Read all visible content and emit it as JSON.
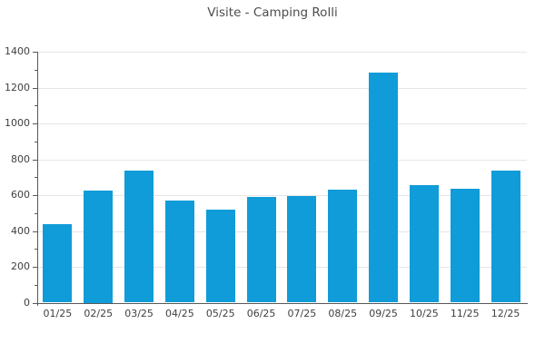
{
  "chart_data": {
    "type": "bar",
    "title": "Visite - Camping Rolli",
    "categories": [
      "01/25",
      "02/25",
      "03/25",
      "04/25",
      "05/25",
      "06/25",
      "07/25",
      "08/25",
      "09/25",
      "10/25",
      "11/25",
      "12/25"
    ],
    "values": [
      440,
      625,
      735,
      570,
      520,
      590,
      595,
      630,
      1285,
      655,
      635,
      735
    ],
    "xlabel": "",
    "ylabel": "",
    "ylim": [
      0,
      1400
    ],
    "ytick_interval": 200,
    "yminor_tick_interval": 100,
    "ytick_labels": [
      "0",
      "200",
      "400",
      "600",
      "800",
      "1000",
      "1200",
      "1400"
    ],
    "grid": "horizontal",
    "legend": "none",
    "colors": {
      "bar": "#0f9cd8",
      "grid": "#e6e6e6",
      "axis": "#595959",
      "title_text": "#4d4d4d",
      "tick_text": "#404040",
      "background": "#ffffff"
    }
  }
}
